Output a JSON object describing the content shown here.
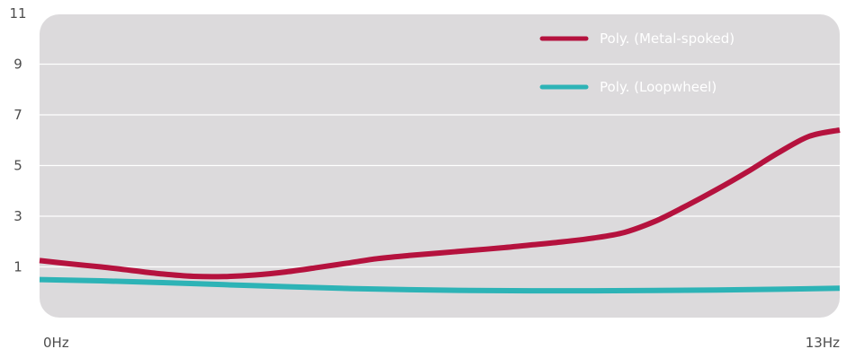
{
  "chart_data": {
    "type": "line",
    "title": "",
    "xlabel": "",
    "ylabel": "",
    "x_tick_labels": [
      "0Hz",
      "13Hz"
    ],
    "xlim": [
      0,
      13
    ],
    "ylim": [
      -1,
      11
    ],
    "y_ticks": [
      1,
      3,
      5,
      7,
      9,
      11
    ],
    "grid": true,
    "legend_position": "top-right",
    "background_color": "#dcdadc",
    "series": [
      {
        "name": "Poly. (Metal-spoked)",
        "color": "#b5123e",
        "x": [
          0,
          0.5,
          1,
          1.5,
          2,
          2.5,
          3,
          3.5,
          4,
          4.5,
          5,
          5.5,
          6,
          6.5,
          7,
          7.5,
          8,
          8.5,
          9,
          9.5,
          10,
          10.5,
          11,
          11.5,
          12,
          12.5,
          13
        ],
        "values": [
          1.25,
          1.12,
          1.0,
          0.86,
          0.72,
          0.63,
          0.62,
          0.68,
          0.8,
          0.97,
          1.15,
          1.33,
          1.45,
          1.55,
          1.65,
          1.75,
          1.87,
          1.99,
          2.14,
          2.36,
          2.8,
          3.4,
          4.05,
          4.75,
          5.5,
          6.15,
          6.4
        ]
      },
      {
        "name": "Poly. (Loopwheel)",
        "color": "#2db3b6",
        "x": [
          0,
          1,
          2,
          3,
          4,
          5,
          6,
          7,
          8,
          9,
          10,
          11,
          12,
          13
        ],
        "values": [
          0.5,
          0.45,
          0.38,
          0.3,
          0.22,
          0.15,
          0.1,
          0.07,
          0.06,
          0.06,
          0.07,
          0.09,
          0.12,
          0.16
        ]
      }
    ]
  }
}
